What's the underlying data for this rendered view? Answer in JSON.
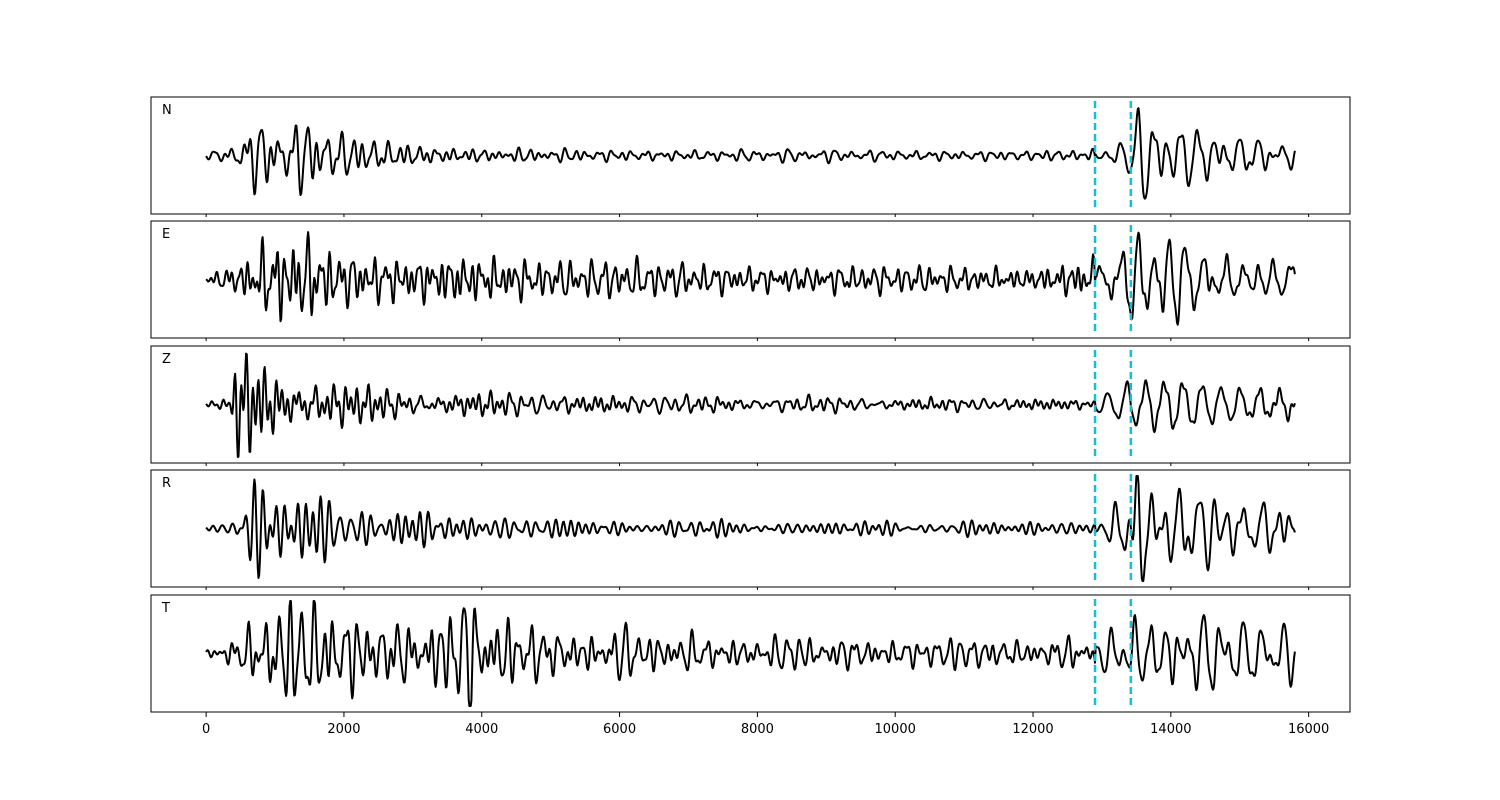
{
  "chart_data": {
    "type": "line",
    "title": "",
    "xlabel": "",
    "ylabel": "",
    "xlim": [
      -800,
      16600
    ],
    "x_ticks": [
      0,
      2000,
      4000,
      6000,
      8000,
      10000,
      12000,
      14000,
      16000
    ],
    "x_tick_labels": [
      "0",
      "2000",
      "4000",
      "6000",
      "8000",
      "10000",
      "12000",
      "14000",
      "16000"
    ],
    "sharex": true,
    "grid": false,
    "legend": "none",
    "n_samples": 15800,
    "markers": {
      "color": "#17becf",
      "style": "dashed",
      "x": [
        12900,
        13420
      ]
    },
    "series": [
      {
        "name": "N",
        "envelope": [
          [
            0,
            0.07
          ],
          [
            400,
            0.15
          ],
          [
            700,
            0.55
          ],
          [
            1100,
            0.45
          ],
          [
            1400,
            0.55
          ],
          [
            2000,
            0.35
          ],
          [
            3200,
            0.2
          ],
          [
            4000,
            0.14
          ],
          [
            6000,
            0.1
          ],
          [
            9000,
            0.09
          ],
          [
            12000,
            0.08
          ],
          [
            12900,
            0.12
          ],
          [
            13400,
            0.35
          ],
          [
            13600,
            1.0
          ],
          [
            14000,
            0.7
          ],
          [
            15000,
            0.5
          ],
          [
            15800,
            0.35
          ]
        ],
        "seed": 11
      },
      {
        "name": "E",
        "envelope": [
          [
            0,
            0.07
          ],
          [
            400,
            0.25
          ],
          [
            800,
            0.65
          ],
          [
            1100,
            0.8
          ],
          [
            1500,
            0.75
          ],
          [
            2000,
            0.45
          ],
          [
            3000,
            0.4
          ],
          [
            3700,
            0.5
          ],
          [
            5000,
            0.3
          ],
          [
            8000,
            0.22
          ],
          [
            12000,
            0.2
          ],
          [
            13000,
            0.45
          ],
          [
            13600,
            0.85
          ],
          [
            14200,
            0.65
          ],
          [
            15000,
            0.4
          ],
          [
            15800,
            0.3
          ]
        ],
        "seed": 23
      },
      {
        "name": "Z",
        "envelope": [
          [
            0,
            0.05
          ],
          [
            350,
            0.1
          ],
          [
            450,
            0.95
          ],
          [
            700,
            0.85
          ],
          [
            1100,
            0.6
          ],
          [
            1600,
            0.55
          ],
          [
            2200,
            0.35
          ],
          [
            3000,
            0.28
          ],
          [
            5000,
            0.25
          ],
          [
            8000,
            0.2
          ],
          [
            12000,
            0.13
          ],
          [
            12900,
            0.12
          ],
          [
            13400,
            0.35
          ],
          [
            14000,
            0.4
          ],
          [
            15000,
            0.35
          ],
          [
            15800,
            0.35
          ]
        ],
        "seed": 37
      },
      {
        "name": "R",
        "envelope": [
          [
            0,
            0.06
          ],
          [
            400,
            0.15
          ],
          [
            700,
            0.55
          ],
          [
            1200,
            0.55
          ],
          [
            1900,
            0.45
          ],
          [
            3000,
            0.25
          ],
          [
            4500,
            0.15
          ],
          [
            8000,
            0.1
          ],
          [
            12000,
            0.1
          ],
          [
            12900,
            0.15
          ],
          [
            13400,
            0.6
          ],
          [
            13600,
            0.95
          ],
          [
            14200,
            0.75
          ],
          [
            15000,
            0.55
          ],
          [
            15800,
            0.35
          ]
        ],
        "seed": 51
      },
      {
        "name": "T",
        "envelope": [
          [
            0,
            0.06
          ],
          [
            400,
            0.3
          ],
          [
            800,
            0.65
          ],
          [
            1100,
            0.85
          ],
          [
            1500,
            0.75
          ],
          [
            2200,
            0.6
          ],
          [
            3000,
            0.55
          ],
          [
            3700,
            0.8
          ],
          [
            5000,
            0.4
          ],
          [
            8000,
            0.25
          ],
          [
            12000,
            0.22
          ],
          [
            13000,
            0.3
          ],
          [
            13500,
            0.75
          ],
          [
            14200,
            0.85
          ],
          [
            15000,
            0.6
          ],
          [
            15800,
            0.45
          ]
        ],
        "seed": 67
      }
    ]
  }
}
